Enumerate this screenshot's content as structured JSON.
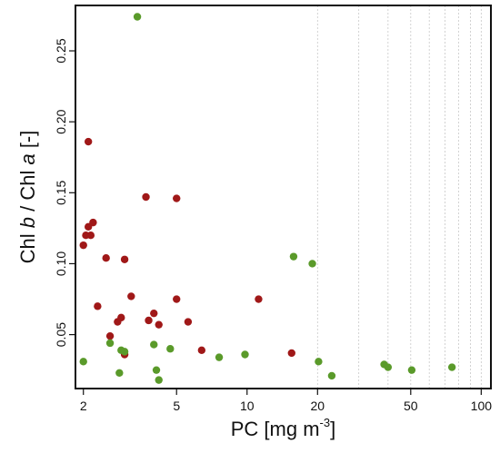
{
  "chart_data": {
    "type": "scatter",
    "xlabel_base": "PC [mg m",
    "xlabel_sup": "-3",
    "xlabel_end": "]",
    "ylabel_parts": [
      "Chl ",
      "b",
      " / Chl ",
      "a",
      " [-]"
    ],
    "x_scale": "log",
    "xlim": [
      1.85,
      110
    ],
    "ylim": [
      0.012,
      0.282
    ],
    "x_ticks": [
      2,
      5,
      10,
      20,
      50,
      100
    ],
    "x_tick_labels": [
      "2",
      "5",
      "10",
      "20",
      "50",
      "100"
    ],
    "y_ticks": [
      0.05,
      0.1,
      0.15,
      0.2,
      0.25
    ],
    "y_tick_labels": [
      "0.05",
      "0.10",
      "0.15",
      "0.20",
      "0.25"
    ],
    "grid_x": [
      20,
      30,
      40,
      50,
      60,
      70,
      80,
      90,
      100
    ],
    "legend": "none",
    "series": [
      {
        "color": "#a01818",
        "points": [
          {
            "x": 2.0,
            "y": 0.113
          },
          {
            "x": 2.05,
            "y": 0.12
          },
          {
            "x": 2.15,
            "y": 0.12
          },
          {
            "x": 2.1,
            "y": 0.126
          },
          {
            "x": 2.2,
            "y": 0.129
          },
          {
            "x": 2.1,
            "y": 0.186
          },
          {
            "x": 2.3,
            "y": 0.07
          },
          {
            "x": 2.5,
            "y": 0.104
          },
          {
            "x": 2.6,
            "y": 0.049
          },
          {
            "x": 2.8,
            "y": 0.059
          },
          {
            "x": 2.9,
            "y": 0.062
          },
          {
            "x": 3.0,
            "y": 0.036
          },
          {
            "x": 3.0,
            "y": 0.103
          },
          {
            "x": 3.2,
            "y": 0.077
          },
          {
            "x": 3.7,
            "y": 0.147
          },
          {
            "x": 3.8,
            "y": 0.06
          },
          {
            "x": 4.0,
            "y": 0.065
          },
          {
            "x": 4.2,
            "y": 0.057
          },
          {
            "x": 5.0,
            "y": 0.146
          },
          {
            "x": 5.0,
            "y": 0.075
          },
          {
            "x": 5.6,
            "y": 0.059
          },
          {
            "x": 6.4,
            "y": 0.039
          },
          {
            "x": 11.2,
            "y": 0.075
          },
          {
            "x": 15.5,
            "y": 0.037
          }
        ]
      },
      {
        "color": "#5a9a2a",
        "points": [
          {
            "x": 2.0,
            "y": 0.031
          },
          {
            "x": 2.6,
            "y": 0.044
          },
          {
            "x": 2.85,
            "y": 0.023
          },
          {
            "x": 2.9,
            "y": 0.039
          },
          {
            "x": 3.0,
            "y": 0.038
          },
          {
            "x": 3.4,
            "y": 0.274
          },
          {
            "x": 4.0,
            "y": 0.043
          },
          {
            "x": 4.1,
            "y": 0.025
          },
          {
            "x": 4.2,
            "y": 0.018
          },
          {
            "x": 4.7,
            "y": 0.04
          },
          {
            "x": 7.6,
            "y": 0.034
          },
          {
            "x": 9.8,
            "y": 0.036
          },
          {
            "x": 15.8,
            "y": 0.105
          },
          {
            "x": 19.0,
            "y": 0.1
          },
          {
            "x": 20.2,
            "y": 0.031
          },
          {
            "x": 23.0,
            "y": 0.021
          },
          {
            "x": 38.5,
            "y": 0.029
          },
          {
            "x": 40.0,
            "y": 0.027
          },
          {
            "x": 50.5,
            "y": 0.025
          },
          {
            "x": 75.0,
            "y": 0.027
          }
        ]
      }
    ]
  }
}
